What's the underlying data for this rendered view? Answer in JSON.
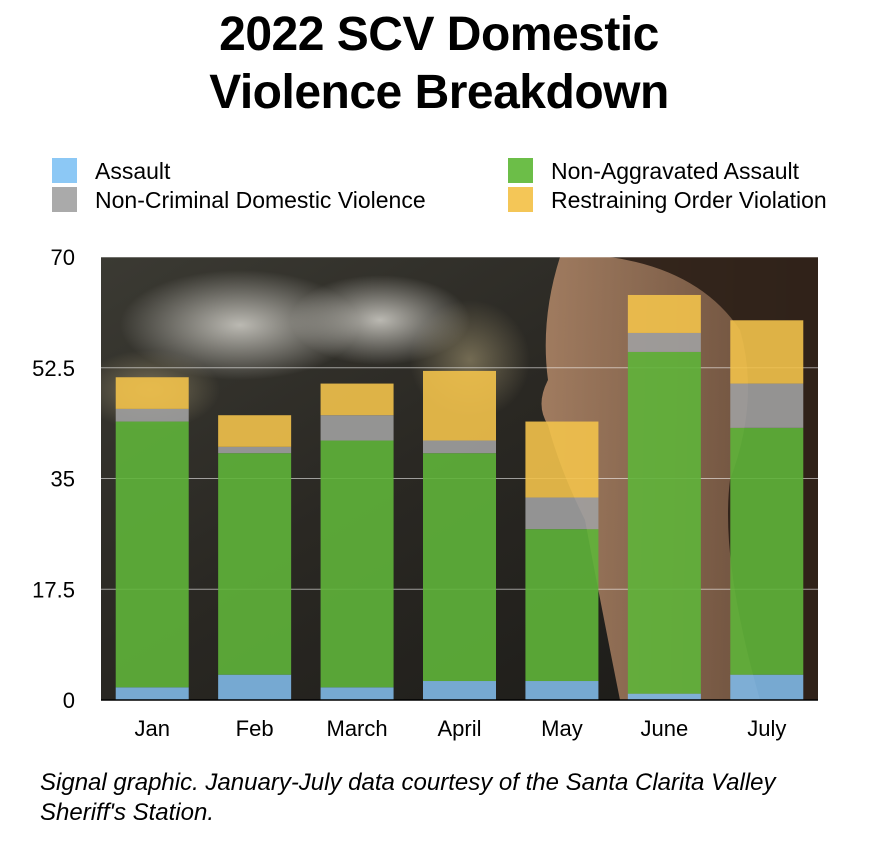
{
  "title_line1": "2022 SCV Domestic",
  "title_line2": "Violence Breakdown",
  "caption": "Signal graphic. January-July data courtesy of the Santa Clarita Valley Sheriff's Station.",
  "chart_data": {
    "type": "bar",
    "stacked": true,
    "categories": [
      "Jan",
      "Feb",
      "March",
      "April",
      "May",
      "June",
      "July"
    ],
    "series": [
      {
        "name": "Assault",
        "color": "#7fb8e6",
        "values": [
          2,
          4,
          2,
          3,
          3,
          1,
          4
        ]
      },
      {
        "name": "Non-Aggravated Assault",
        "color": "#5fb43a",
        "values": [
          42,
          35,
          39,
          36,
          24,
          54,
          39
        ]
      },
      {
        "name": "Non-Criminal Domestic Violence",
        "color": "#a0a0a0",
        "values": [
          2,
          1,
          4,
          2,
          5,
          3,
          7
        ]
      },
      {
        "name": "Restraining Order Violation",
        "color": "#f2c24b",
        "values": [
          5,
          5,
          5,
          11,
          12,
          6,
          10
        ]
      }
    ],
    "legend_order": [
      "Assault",
      "Non-Aggravated Assault",
      "Non-Criminal Domestic Violence",
      "Restraining Order Violation"
    ],
    "legend_position": "top",
    "ylim": [
      0,
      70
    ],
    "yticks": [
      "0",
      "17.5",
      "35",
      "52.5",
      "70"
    ],
    "grid": true,
    "xlabel": "",
    "ylabel": ""
  }
}
